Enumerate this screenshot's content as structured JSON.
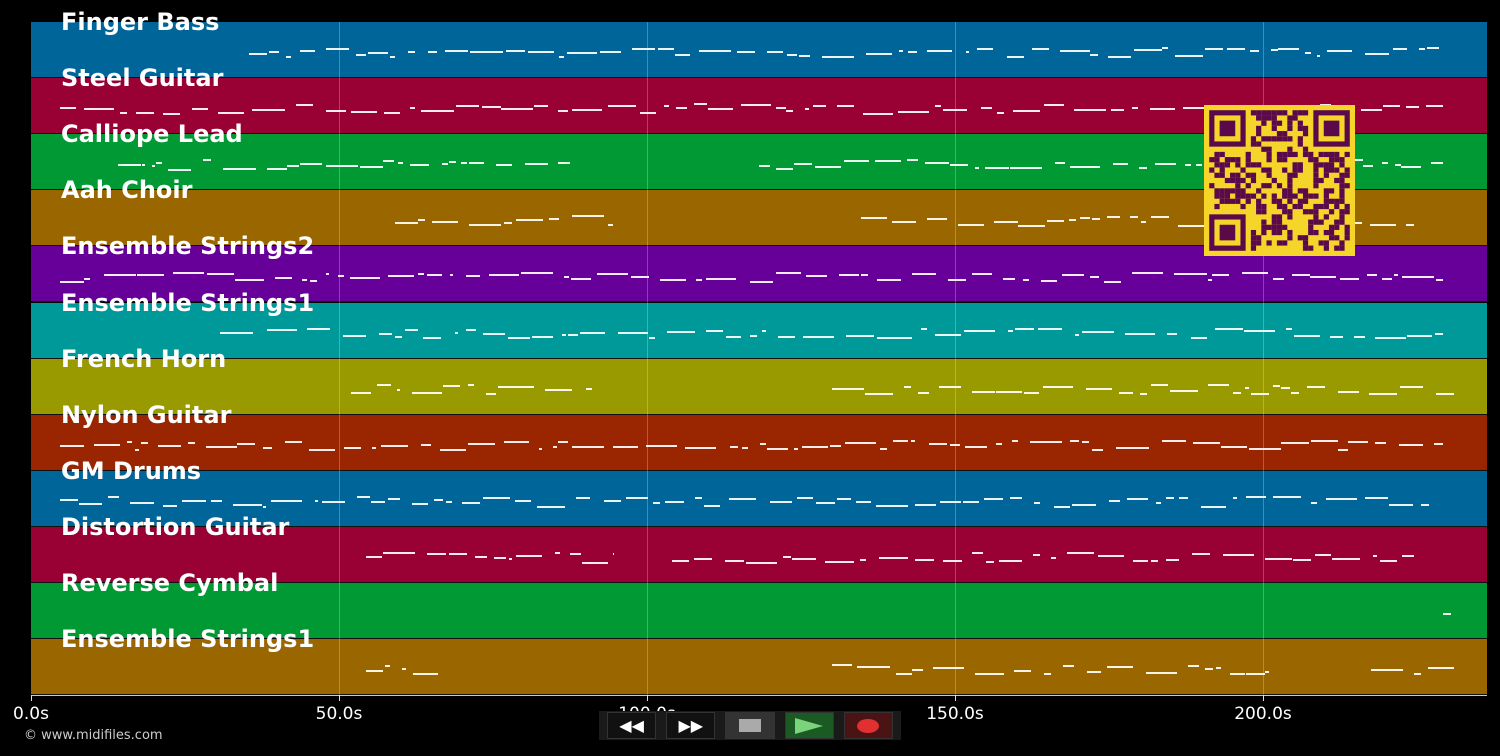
{
  "tracks": [
    {
      "name": "Finger Bass",
      "color": "#006699"
    },
    {
      "name": "Steel Guitar",
      "color": "#990033"
    },
    {
      "name": "Calliope Lead",
      "color": "#009933"
    },
    {
      "name": "Aah Choir",
      "color": "#996600"
    },
    {
      "name": "Ensemble Strings2",
      "color": "#660099"
    },
    {
      "name": "Ensemble Strings1",
      "color": "#009999"
    },
    {
      "name": "French Horn",
      "color": "#999900"
    },
    {
      "name": "Nylon Guitar",
      "color": "#992600"
    },
    {
      "name": "GM Drums",
      "color": "#006699"
    },
    {
      "name": "Distortion Guitar",
      "color": "#990033"
    },
    {
      "name": "Reverse Cymbal",
      "color": "#009933"
    },
    {
      "name": "Ensemble Strings1",
      "color": "#996600"
    }
  ],
  "axis": {
    "ticks": [
      "0.0s",
      "50.0s",
      "100.0s",
      "150.0s",
      "200.0s"
    ]
  },
  "controls": {
    "rewind": "rewind-icon",
    "fast_forward": "fast-forward-icon",
    "stop": "stop-icon",
    "play": "play-icon",
    "record": "record-icon"
  },
  "qr": {
    "fg": "#5a0a4a",
    "bg": "#f5d52a"
  },
  "copyright": "© www.midifiles.com"
}
